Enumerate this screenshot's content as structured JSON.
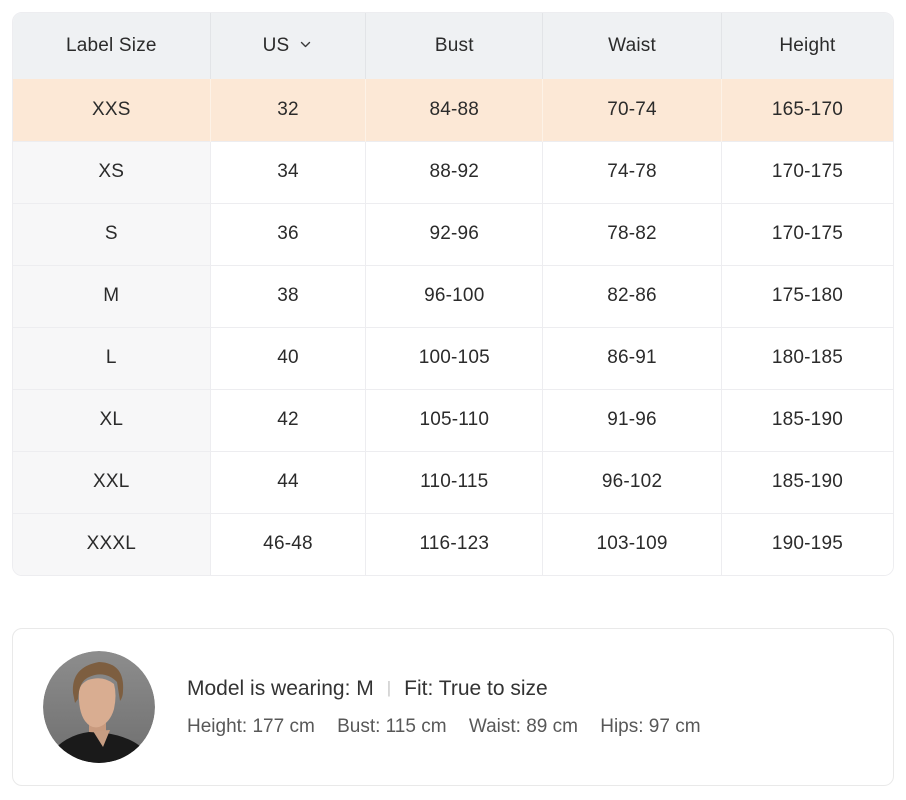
{
  "colors": {
    "highlight_row_bg": "#fce8d6",
    "header_bg": "#eff1f3",
    "first_col_bg": "#f7f7f8",
    "table_border": "#ededf0",
    "card_border": "#e9e9e9"
  },
  "icons": {
    "chevron_down": "∨"
  },
  "size_table": {
    "columns": [
      "Label Size",
      "US",
      "Bust",
      "Waist",
      "Height"
    ],
    "rows": [
      {
        "cells": [
          "XXS",
          "32",
          "84-88",
          "70-74",
          "165-170"
        ],
        "highlighted": true
      },
      {
        "cells": [
          "XS",
          "34",
          "88-92",
          "74-78",
          "170-175"
        ],
        "highlighted": false
      },
      {
        "cells": [
          "S",
          "36",
          "92-96",
          "78-82",
          "170-175"
        ],
        "highlighted": false
      },
      {
        "cells": [
          "M",
          "38",
          "96-100",
          "82-86",
          "175-180"
        ],
        "highlighted": false
      },
      {
        "cells": [
          "L",
          "40",
          "100-105",
          "86-91",
          "180-185"
        ],
        "highlighted": false
      },
      {
        "cells": [
          "XL",
          "42",
          "105-110",
          "91-96",
          "185-190"
        ],
        "highlighted": false
      },
      {
        "cells": [
          "XXL",
          "44",
          "110-115",
          "96-102",
          "185-190"
        ],
        "highlighted": false
      },
      {
        "cells": [
          "XXXL",
          "46-48",
          "116-123",
          "103-109",
          "190-195"
        ],
        "highlighted": false
      }
    ]
  },
  "model_info": {
    "wearing": "Model is wearing: M",
    "divider": "|",
    "fit": "Fit: True to size",
    "measurements": [
      "Height: 177 cm",
      "Bust: 115 cm",
      "Waist: 89 cm",
      "Hips: 97 cm"
    ]
  }
}
